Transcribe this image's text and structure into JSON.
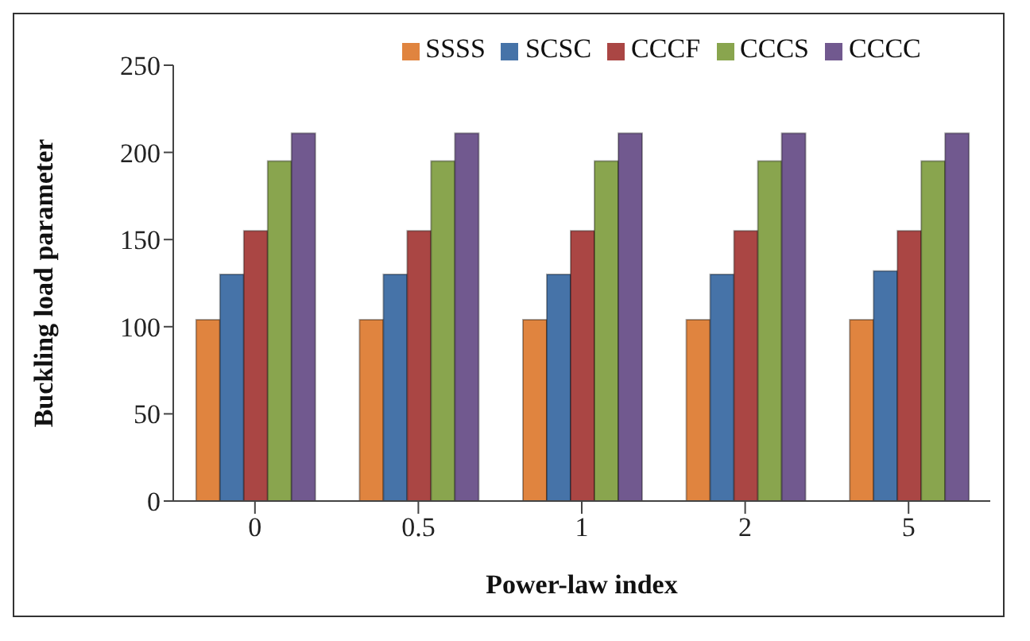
{
  "chart_data": {
    "type": "bar",
    "xlabel": "Power-law index",
    "ylabel": "Buckling load parameter",
    "categories": [
      "0",
      "0.5",
      "1",
      "2",
      "5"
    ],
    "series": [
      {
        "name": "SSSS",
        "color": "#e0843f",
        "values": [
          104,
          104,
          104,
          104,
          104
        ]
      },
      {
        "name": "SCSC",
        "color": "#4673a8",
        "values": [
          130,
          130,
          130,
          130,
          132
        ]
      },
      {
        "name": "CCCF",
        "color": "#aa4644",
        "values": [
          155,
          155,
          155,
          155,
          155
        ]
      },
      {
        "name": "CCCS",
        "color": "#89a54e",
        "values": [
          195,
          195,
          195,
          195,
          195
        ]
      },
      {
        "name": "CCCC",
        "color": "#71598f",
        "values": [
          211,
          211,
          211,
          211,
          211
        ]
      }
    ],
    "ylim": [
      0,
      250
    ],
    "yticks": [
      0,
      50,
      100,
      150,
      200,
      250
    ],
    "grid": false,
    "legend": "top"
  }
}
